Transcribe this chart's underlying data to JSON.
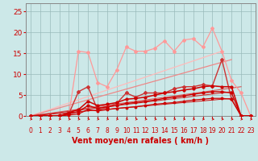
{
  "bg_color": "#cce8e8",
  "grid_color": "#99bbbb",
  "xlabel": "Vent moyen/en rafales ( km/h )",
  "xlabel_color": "#cc0000",
  "xlabel_fontsize": 7.0,
  "tick_color": "#cc0000",
  "ytick_fontsize": 6.5,
  "xtick_fontsize": 5.5,
  "xlim": [
    -0.5,
    23.5
  ],
  "ylim": [
    0,
    27
  ],
  "yticks": [
    0,
    5,
    10,
    15,
    20,
    25
  ],
  "xticks": [
    0,
    1,
    2,
    3,
    4,
    5,
    6,
    7,
    8,
    9,
    10,
    11,
    12,
    13,
    14,
    15,
    16,
    17,
    18,
    19,
    20,
    21,
    22,
    23
  ],
  "line_light_pink": {
    "x": [
      0,
      1,
      2,
      3,
      4,
      5,
      6,
      7,
      8,
      9,
      10,
      11,
      12,
      13,
      14,
      15,
      16,
      17,
      18,
      19,
      20,
      21,
      22,
      23
    ],
    "y": [
      0,
      0,
      0,
      0.1,
      0.3,
      15.5,
      15.2,
      8.0,
      7.0,
      11.0,
      16.5,
      15.5,
      15.5,
      16.2,
      18.0,
      15.5,
      18.2,
      18.5,
      16.5,
      21.0,
      15.5,
      8.5,
      5.5,
      0.0
    ],
    "color": "#ff9999",
    "lw": 0.9,
    "ms": 2.0
  },
  "line_med_red": {
    "x": [
      0,
      1,
      2,
      3,
      4,
      5,
      6,
      7,
      8,
      9,
      10,
      11,
      12,
      13,
      14,
      15,
      16,
      17,
      18,
      19,
      20,
      21,
      22,
      23
    ],
    "y": [
      0,
      0,
      0,
      0.1,
      0.5,
      5.8,
      7.0,
      1.5,
      2.0,
      3.0,
      5.5,
      4.5,
      5.5,
      5.5,
      5.5,
      6.5,
      7.0,
      7.0,
      7.5,
      7.2,
      13.5,
      4.0,
      0.0,
      0.0
    ],
    "color": "#cc3333",
    "lw": 1.0,
    "ms": 2.0
  },
  "dark_lines": [
    {
      "x": [
        0,
        1,
        2,
        3,
        4,
        5,
        6,
        7,
        8,
        9,
        10,
        11,
        12,
        13,
        14,
        15,
        16,
        17,
        18,
        19,
        20,
        21,
        22,
        23
      ],
      "y": [
        0,
        0,
        0,
        0,
        0.8,
        1.5,
        3.5,
        2.5,
        2.8,
        3.2,
        4.0,
        4.2,
        4.5,
        5.0,
        5.5,
        5.8,
        6.2,
        6.5,
        7.0,
        7.2,
        7.0,
        7.0,
        0.0,
        0.0
      ],
      "color": "#cc0000",
      "lw": 1.1,
      "ms": 2.0
    },
    {
      "x": [
        0,
        1,
        2,
        3,
        4,
        5,
        6,
        7,
        8,
        9,
        10,
        11,
        12,
        13,
        14,
        15,
        16,
        17,
        18,
        19,
        20,
        21,
        22,
        23
      ],
      "y": [
        0,
        0,
        0,
        0,
        0.5,
        1.0,
        2.5,
        1.8,
        2.2,
        2.5,
        3.0,
        3.2,
        3.5,
        3.8,
        4.2,
        4.5,
        4.8,
        5.2,
        5.5,
        5.8,
        5.8,
        5.5,
        0.0,
        0.0
      ],
      "color": "#cc0000",
      "lw": 1.0,
      "ms": 2.0
    },
    {
      "x": [
        0,
        1,
        2,
        3,
        4,
        5,
        6,
        7,
        8,
        9,
        10,
        11,
        12,
        13,
        14,
        15,
        16,
        17,
        18,
        19,
        20,
        21,
        22,
        23
      ],
      "y": [
        0,
        0,
        0,
        0,
        0.2,
        0.5,
        1.5,
        1.2,
        1.5,
        1.8,
        2.0,
        2.2,
        2.5,
        2.8,
        3.0,
        3.2,
        3.5,
        3.8,
        4.0,
        4.2,
        4.2,
        4.0,
        0.0,
        0.0
      ],
      "color": "#cc0000",
      "lw": 0.9,
      "ms": 1.8
    }
  ],
  "ref_lines": [
    {
      "x1": 20,
      "y1": 15.5,
      "color": "#ffbbbb",
      "lw": 0.9
    },
    {
      "x1": 21,
      "y1": 13.5,
      "color": "#ee8888",
      "lw": 0.9
    },
    {
      "x1": 22,
      "y1": 7.0,
      "color": "#dd5555",
      "lw": 0.8
    },
    {
      "x1": 21,
      "y1": 5.8,
      "color": "#cc3333",
      "lw": 0.8
    },
    {
      "x1": 21,
      "y1": 4.2,
      "color": "#cc1111",
      "lw": 0.7
    }
  ]
}
